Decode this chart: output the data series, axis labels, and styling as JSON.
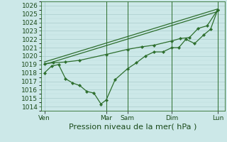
{
  "background_color": "#cce8e8",
  "grid_major_color": "#aacccc",
  "grid_minor_color": "#bbdddd",
  "line_color": "#2d6e2d",
  "ylim": [
    1013.5,
    1026.5
  ],
  "yticks": [
    1014,
    1015,
    1016,
    1017,
    1018,
    1019,
    1020,
    1021,
    1022,
    1023,
    1024,
    1025,
    1026
  ],
  "xlabel": "Pression niveau de la mer( hPa )",
  "xlabel_fontsize": 8,
  "tick_fontsize": 6.5,
  "xtick_labels": [
    "Ven",
    "Mar",
    "Sam",
    "Dim",
    "Lun"
  ],
  "xtick_positions": [
    0.0,
    3.5,
    4.7,
    7.2,
    9.8
  ],
  "xlim": [
    -0.2,
    10.2
  ],
  "line1_x": [
    0.0,
    0.4,
    0.8,
    1.2,
    1.6,
    2.0,
    2.4,
    2.8,
    3.2,
    3.5,
    4.0,
    4.7,
    5.2,
    5.7,
    6.2,
    6.7,
    7.2,
    7.6,
    8.0,
    8.5,
    9.0,
    9.4,
    9.8
  ],
  "line1_y": [
    1018.0,
    1018.8,
    1019.0,
    1017.3,
    1016.8,
    1016.5,
    1015.8,
    1015.6,
    1014.3,
    1014.8,
    1017.2,
    1018.5,
    1019.2,
    1020.0,
    1020.5,
    1020.5,
    1021.0,
    1021.0,
    1022.0,
    1021.5,
    1022.5,
    1023.2,
    1025.5
  ],
  "line2_x": [
    0.0,
    9.8
  ],
  "line2_y": [
    1019.0,
    1025.3
  ],
  "line3_x": [
    0.0,
    9.8
  ],
  "line3_y": [
    1019.3,
    1025.6
  ],
  "line4_x": [
    0.0,
    0.5,
    1.2,
    2.0,
    3.5,
    4.7,
    5.5,
    6.2,
    7.2,
    7.7,
    8.2,
    8.7,
    9.2,
    9.8
  ],
  "line4_y": [
    1019.1,
    1019.2,
    1019.3,
    1019.5,
    1020.2,
    1020.8,
    1021.1,
    1021.3,
    1021.8,
    1022.1,
    1022.2,
    1023.3,
    1023.6,
    1025.5
  ],
  "vline_positions": [
    3.5,
    4.7,
    7.2,
    9.8
  ],
  "marker_size": 2.2,
  "line_width": 0.9
}
